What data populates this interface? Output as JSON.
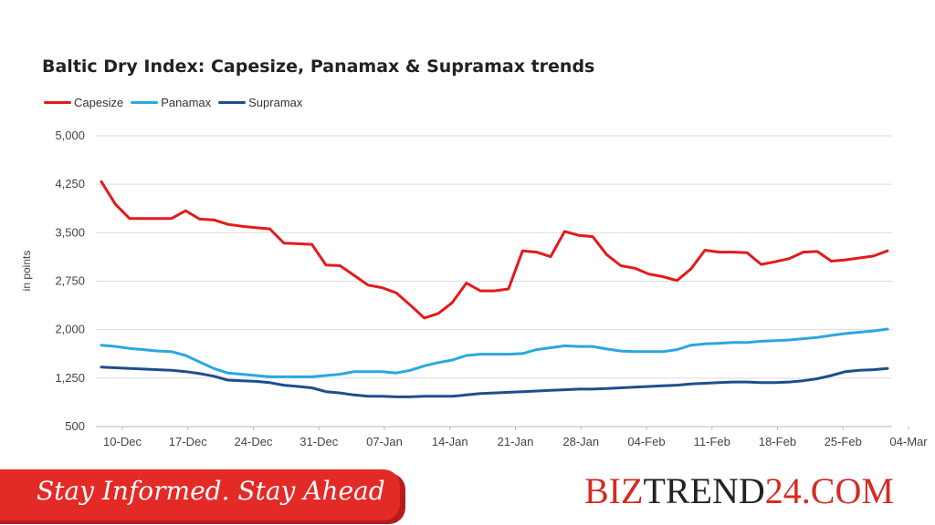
{
  "chart_data": {
    "type": "line",
    "title": "Baltic Dry Index: Capesize, Panamax & Supramax trends",
    "ylabel": "in points",
    "xlabel": "",
    "ylim": [
      500,
      5000
    ],
    "yticks": [
      "5,000",
      "4,250",
      "3,500",
      "2,750",
      "2,000",
      "1,250",
      "500"
    ],
    "ytick_values": [
      5000,
      4250,
      3500,
      2750,
      2000,
      1250,
      500
    ],
    "xticks": [
      "10-Dec",
      "17-Dec",
      "24-Dec",
      "31-Dec",
      "07-Jan",
      "14-Jan",
      "21-Jan",
      "28-Jan",
      "04-Feb",
      "11-Feb",
      "18-Feb",
      "25-Feb",
      "04-Mar"
    ],
    "grid": true,
    "legend_position": "top-left",
    "series": [
      {
        "name": "Capesize",
        "color": "#e31a1c",
        "values": [
          4290,
          3940,
          3720,
          3720,
          3720,
          3720,
          3840,
          3710,
          3700,
          3630,
          3600,
          3580,
          3560,
          3340,
          3330,
          3320,
          3000,
          2990,
          2840,
          2690,
          2650,
          2570,
          2380,
          2180,
          2250,
          2420,
          2720,
          2600,
          2600,
          2630,
          3220,
          3200,
          3130,
          3520,
          3460,
          3440,
          3160,
          2990,
          2950,
          2860,
          2820,
          2760,
          2940,
          3230,
          3200,
          3200,
          3190,
          3010,
          3050,
          3100,
          3200,
          3210,
          3060,
          3080,
          3110,
          3140,
          3220
        ]
      },
      {
        "name": "Panamax",
        "color": "#29a8e0",
        "values": [
          1760,
          1740,
          1710,
          1690,
          1670,
          1660,
          1600,
          1500,
          1400,
          1330,
          1310,
          1290,
          1270,
          1270,
          1270,
          1270,
          1290,
          1310,
          1350,
          1350,
          1350,
          1330,
          1370,
          1440,
          1490,
          1530,
          1600,
          1620,
          1620,
          1620,
          1630,
          1690,
          1720,
          1750,
          1740,
          1740,
          1700,
          1670,
          1660,
          1660,
          1660,
          1690,
          1760,
          1780,
          1790,
          1800,
          1800,
          1820,
          1830,
          1840,
          1860,
          1880,
          1910,
          1940,
          1960,
          1980,
          2010
        ]
      },
      {
        "name": "Supramax",
        "color": "#1f4e8c",
        "values": [
          1420,
          1410,
          1400,
          1390,
          1380,
          1370,
          1350,
          1320,
          1280,
          1220,
          1210,
          1200,
          1180,
          1140,
          1120,
          1100,
          1040,
          1020,
          990,
          970,
          970,
          960,
          960,
          970,
          970,
          970,
          990,
          1010,
          1020,
          1030,
          1040,
          1050,
          1060,
          1070,
          1080,
          1080,
          1090,
          1100,
          1110,
          1120,
          1130,
          1140,
          1160,
          1170,
          1180,
          1190,
          1190,
          1180,
          1180,
          1190,
          1210,
          1240,
          1290,
          1350,
          1370,
          1380,
          1400
        ]
      }
    ]
  },
  "footer": {
    "tagline": "Stay Informed. Stay Ahead",
    "brand_part1": "BIZ",
    "brand_part2": "TREND",
    "brand_part3": "24.COM"
  }
}
